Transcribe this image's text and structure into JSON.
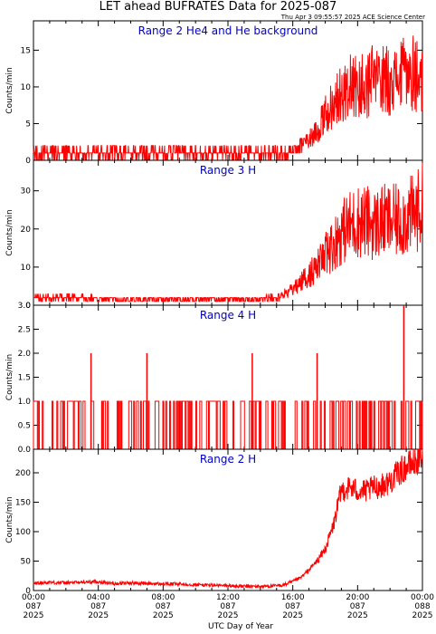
{
  "figure": {
    "title": "LET ahead BUFRATES Data for 2025-087",
    "timestamp": "Thu Apr  3 09:55:57 2025 ACE Science Center",
    "xlabel": "UTC Day of Year",
    "x_ticks": [
      {
        "hour": 0,
        "time": "00:00",
        "doy": "087",
        "year": "2025"
      },
      {
        "hour": 4,
        "time": "04:00",
        "doy": "087",
        "year": "2025"
      },
      {
        "hour": 8,
        "time": "08:00",
        "doy": "087",
        "year": "2025"
      },
      {
        "hour": 12,
        "time": "12:00",
        "doy": "087",
        "year": "2025"
      },
      {
        "hour": 16,
        "time": "16:00",
        "doy": "087",
        "year": "2025"
      },
      {
        "hour": 20,
        "time": "20:00",
        "doy": "087",
        "year": "2025"
      },
      {
        "hour": 24,
        "time": "00:00",
        "doy": "088",
        "year": "2025"
      }
    ],
    "trace_color": "#ff0000",
    "title_color": "#0000cc"
  },
  "chart_data": [
    {
      "type": "line",
      "title": "Range 2 He4 and He background",
      "ylabel": "Counts/min",
      "xlim": [
        0,
        24
      ],
      "ylim": [
        0,
        19
      ],
      "y_ticks": [
        0,
        5,
        10,
        15
      ],
      "series": [
        {
          "x": [
            0,
            1,
            2,
            3,
            4,
            5,
            6,
            7,
            8,
            9,
            10,
            11,
            12,
            13,
            14,
            15,
            16,
            16.5,
            17,
            17.5,
            18,
            18.5,
            19,
            19.5,
            20,
            20.5,
            21,
            21.5,
            22,
            22.5,
            23,
            23.5,
            24
          ],
          "values": [
            1,
            1,
            1,
            1,
            1,
            1,
            1,
            1,
            1,
            1,
            1,
            1,
            1,
            1,
            1,
            1,
            1,
            2,
            3,
            4,
            6,
            8,
            9,
            10,
            10,
            10,
            11,
            11,
            11,
            11,
            12,
            12,
            11
          ]
        }
      ]
    },
    {
      "type": "line",
      "title": "Range 3 H",
      "ylabel": "Counts/min",
      "xlim": [
        0,
        24
      ],
      "ylim": [
        0,
        38
      ],
      "y_ticks": [
        0,
        10,
        20,
        30
      ],
      "series": [
        {
          "x": [
            0,
            1,
            2,
            3,
            4,
            5,
            6,
            7,
            8,
            9,
            10,
            11,
            12,
            13,
            14,
            15,
            15.5,
            16,
            16.5,
            17,
            17.5,
            18,
            18.5,
            19,
            19.5,
            20,
            20.5,
            21,
            21.5,
            22,
            22.5,
            23,
            23.5,
            24
          ],
          "values": [
            2,
            2,
            2,
            2,
            1.5,
            1.5,
            1.5,
            1.5,
            1.5,
            1.5,
            1.5,
            1.5,
            1.5,
            1.5,
            1.5,
            2,
            3,
            4,
            6,
            8,
            10,
            13,
            16,
            19,
            21,
            22,
            22,
            21,
            22,
            22,
            22,
            23,
            24,
            26
          ]
        }
      ]
    },
    {
      "type": "line",
      "title": "Range 4 H",
      "ylabel": "Counts/min",
      "xlim": [
        0,
        24
      ],
      "ylim": [
        0,
        3
      ],
      "y_ticks": [
        0.0,
        0.5,
        1.0,
        1.5,
        2.0,
        2.5,
        3.0
      ],
      "series": [
        {
          "spikes_at_2": [
            3.55,
            7.0,
            13.5,
            17.5
          ],
          "spikes_at_3": [
            22.85
          ]
        }
      ]
    },
    {
      "type": "line",
      "title": "Range 2 H",
      "ylabel": "Counts/min",
      "xlim": [
        0,
        24
      ],
      "ylim": [
        0,
        240
      ],
      "y_ticks": [
        0,
        50,
        100,
        150,
        200
      ],
      "series": [
        {
          "x": [
            0,
            1,
            2,
            3,
            4,
            5,
            6,
            7,
            8,
            9,
            10,
            11,
            12,
            13,
            14,
            15,
            15.5,
            16,
            16.5,
            17,
            17.5,
            18,
            18.5,
            19,
            19.5,
            20,
            20.5,
            21,
            21.5,
            22,
            22.5,
            23,
            23.5,
            24
          ],
          "values": [
            12,
            14,
            13,
            14,
            15,
            12,
            13,
            12,
            11,
            11,
            10,
            9,
            8,
            7,
            7,
            8,
            10,
            15,
            22,
            35,
            50,
            70,
            110,
            170,
            175,
            170,
            168,
            175,
            178,
            185,
            200,
            210,
            218,
            228
          ]
        }
      ]
    }
  ]
}
